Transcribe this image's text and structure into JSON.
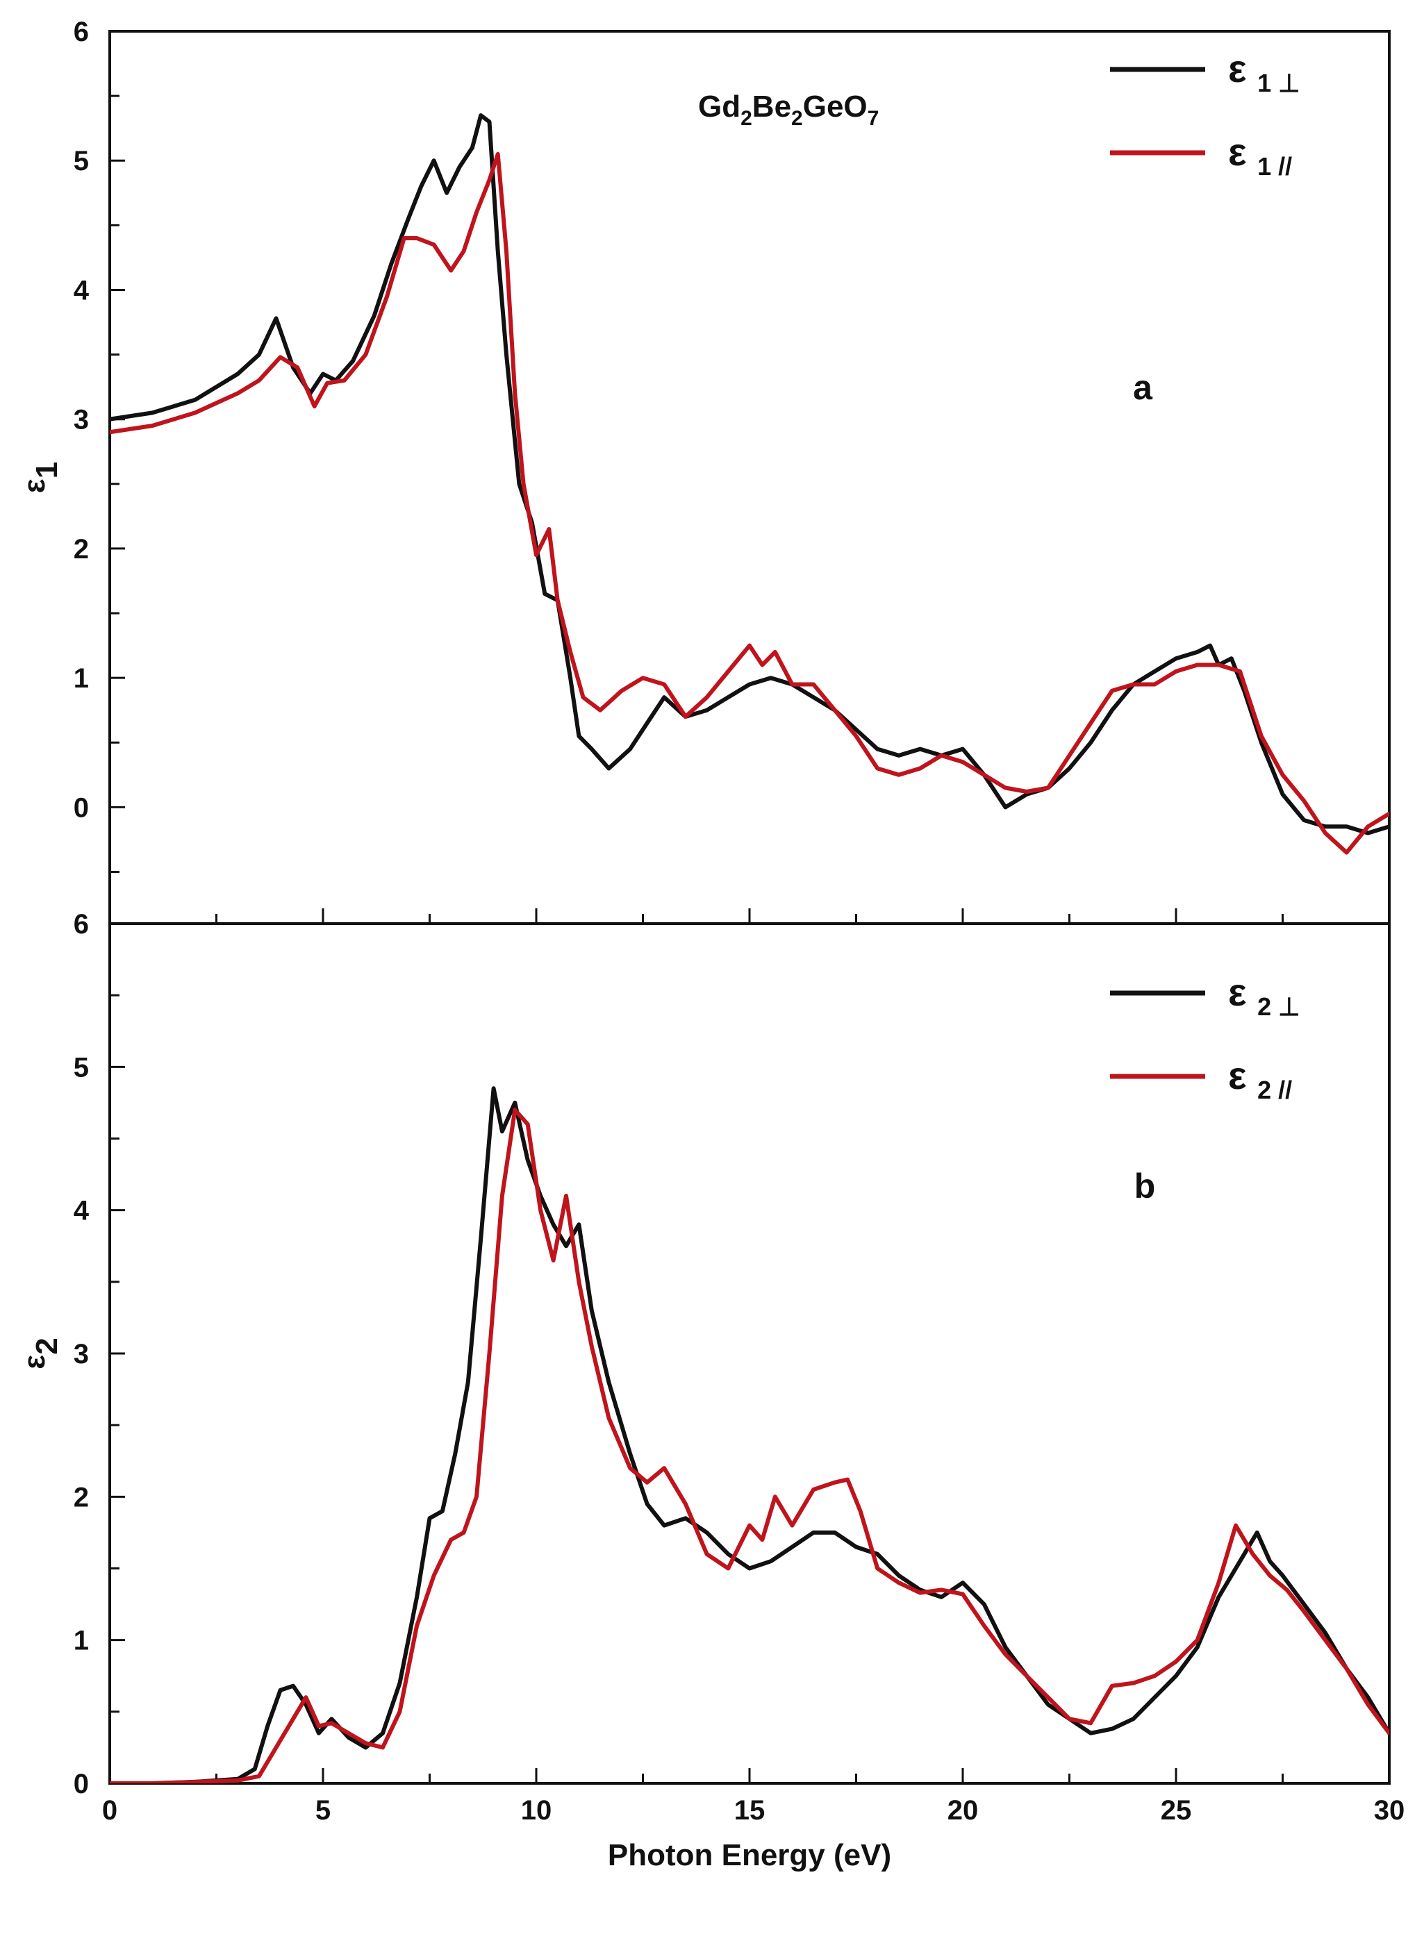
{
  "chart_data": [
    {
      "type": "line",
      "panel_label": "a",
      "annotation": {
        "main": "Gd",
        "parts": [
          [
            "Gd",
            "2"
          ],
          [
            "Be",
            "2"
          ],
          [
            "GeO",
            "7"
          ]
        ]
      },
      "ylabel": {
        "symbol": "ε",
        "sub": "1"
      },
      "xlabel": "",
      "xlim": [
        0,
        30
      ],
      "ylim": [
        -0.9,
        6
      ],
      "yticks": [
        "0",
        "1",
        "2",
        "3",
        "4",
        "5",
        "6"
      ],
      "xticks": [],
      "legend_position": "top-right",
      "series": [
        {
          "name": "ε 1 ⊥",
          "legend_symbol": "ε",
          "legend_sub": "1",
          "legend_mark": "⊥",
          "color": "#111111",
          "x": [
            0,
            1,
            2,
            3,
            3.5,
            3.9,
            4.3,
            4.7,
            5.0,
            5.3,
            5.7,
            6.2,
            6.6,
            7.0,
            7.3,
            7.6,
            7.9,
            8.2,
            8.5,
            8.7,
            8.9,
            9.1,
            9.3,
            9.6,
            9.9,
            10.2,
            10.5,
            10.8,
            11.0,
            11.3,
            11.7,
            12.2,
            12.6,
            13.0,
            13.5,
            14.0,
            14.5,
            15.0,
            15.5,
            16.0,
            16.5,
            17.0,
            17.5,
            18.0,
            18.5,
            19.0,
            19.5,
            20.0,
            20.5,
            21.0,
            21.5,
            22.0,
            22.5,
            23.0,
            23.5,
            24.0,
            24.5,
            25.0,
            25.5,
            25.8,
            26.0,
            26.3,
            26.6,
            27.0,
            27.5,
            28.0,
            28.5,
            29.0,
            29.5,
            30.0
          ],
          "values": [
            3.0,
            3.05,
            3.15,
            3.35,
            3.5,
            3.78,
            3.4,
            3.2,
            3.35,
            3.3,
            3.45,
            3.8,
            4.2,
            4.55,
            4.8,
            5.0,
            4.75,
            4.95,
            5.1,
            5.35,
            5.3,
            4.3,
            3.5,
            2.5,
            2.2,
            1.65,
            1.6,
            1.0,
            0.55,
            0.45,
            0.3,
            0.45,
            0.65,
            0.85,
            0.7,
            0.75,
            0.85,
            0.95,
            1.0,
            0.95,
            0.85,
            0.75,
            0.6,
            0.45,
            0.4,
            0.45,
            0.4,
            0.45,
            0.25,
            0.0,
            0.1,
            0.15,
            0.3,
            0.5,
            0.75,
            0.95,
            1.05,
            1.15,
            1.2,
            1.25,
            1.1,
            1.15,
            0.9,
            0.5,
            0.1,
            -0.1,
            -0.15,
            -0.15,
            -0.2,
            -0.15
          ]
        },
        {
          "name": "ε 1 //",
          "legend_symbol": "ε",
          "legend_sub": "1",
          "legend_mark": "//",
          "color": "#c0141c",
          "x": [
            0,
            1,
            2,
            3,
            3.5,
            4.0,
            4.4,
            4.8,
            5.1,
            5.5,
            6.0,
            6.5,
            6.9,
            7.2,
            7.6,
            8.0,
            8.3,
            8.6,
            8.9,
            9.1,
            9.3,
            9.5,
            9.7,
            10.0,
            10.3,
            10.5,
            10.8,
            11.1,
            11.5,
            12.0,
            12.5,
            13.0,
            13.5,
            14.0,
            14.5,
            15.0,
            15.3,
            15.6,
            16.0,
            16.5,
            17.0,
            17.5,
            18.0,
            18.5,
            19.0,
            19.5,
            20.0,
            20.5,
            21.0,
            21.5,
            22.0,
            22.5,
            23.0,
            23.5,
            24.0,
            24.5,
            25.0,
            25.5,
            26.0,
            26.5,
            27.0,
            27.5,
            28.0,
            28.5,
            29.0,
            29.5,
            30.0
          ],
          "values": [
            2.9,
            2.95,
            3.05,
            3.2,
            3.3,
            3.48,
            3.4,
            3.1,
            3.28,
            3.3,
            3.5,
            3.95,
            4.4,
            4.4,
            4.35,
            4.15,
            4.3,
            4.6,
            4.85,
            5.05,
            4.3,
            3.2,
            2.5,
            1.95,
            2.15,
            1.6,
            1.2,
            0.85,
            0.75,
            0.9,
            1.0,
            0.95,
            0.7,
            0.85,
            1.05,
            1.25,
            1.1,
            1.2,
            0.95,
            0.95,
            0.75,
            0.55,
            0.3,
            0.25,
            0.3,
            0.4,
            0.35,
            0.25,
            0.15,
            0.12,
            0.15,
            0.4,
            0.65,
            0.9,
            0.95,
            0.95,
            1.05,
            1.1,
            1.1,
            1.05,
            0.55,
            0.25,
            0.05,
            -0.2,
            -0.35,
            -0.15,
            -0.05
          ]
        }
      ]
    },
    {
      "type": "line",
      "panel_label": "b",
      "ylabel": {
        "symbol": "ε",
        "sub": "2"
      },
      "xlabel": "Photon Energy (eV)",
      "xlim": [
        0,
        30
      ],
      "ylim": [
        0,
        6
      ],
      "yticks": [
        "0",
        "1",
        "2",
        "3",
        "4",
        "5",
        "6"
      ],
      "xticks": [
        "0",
        "5",
        "10",
        "15",
        "20",
        "25",
        "30"
      ],
      "legend_position": "top-right",
      "series": [
        {
          "name": "ε 2 ⊥",
          "legend_symbol": "ε",
          "legend_sub": "2",
          "legend_mark": "⊥",
          "color": "#111111",
          "x": [
            0,
            1,
            2,
            3,
            3.4,
            3.7,
            4.0,
            4.3,
            4.6,
            4.9,
            5.2,
            5.6,
            6.0,
            6.4,
            6.8,
            7.2,
            7.5,
            7.8,
            8.1,
            8.4,
            8.7,
            9.0,
            9.2,
            9.5,
            9.8,
            10.1,
            10.4,
            10.7,
            11.0,
            11.3,
            11.7,
            12.2,
            12.6,
            13.0,
            13.5,
            14.0,
            14.5,
            15.0,
            15.5,
            16.0,
            16.5,
            17.0,
            17.5,
            18.0,
            18.5,
            19.0,
            19.5,
            20.0,
            20.5,
            21.0,
            21.5,
            22.0,
            22.5,
            23.0,
            23.5,
            24.0,
            24.5,
            25.0,
            25.5,
            26.0,
            26.5,
            26.9,
            27.2,
            27.5,
            28.0,
            28.5,
            29.0,
            29.5,
            30.0
          ],
          "values": [
            0.0,
            0.0,
            0.01,
            0.03,
            0.1,
            0.4,
            0.65,
            0.68,
            0.55,
            0.35,
            0.45,
            0.32,
            0.25,
            0.35,
            0.7,
            1.3,
            1.85,
            1.9,
            2.3,
            2.8,
            3.8,
            4.85,
            4.55,
            4.75,
            4.35,
            4.1,
            3.9,
            3.75,
            3.9,
            3.3,
            2.8,
            2.3,
            1.95,
            1.8,
            1.85,
            1.75,
            1.6,
            1.5,
            1.55,
            1.65,
            1.75,
            1.75,
            1.65,
            1.6,
            1.45,
            1.35,
            1.3,
            1.4,
            1.25,
            0.95,
            0.75,
            0.55,
            0.45,
            0.35,
            0.38,
            0.45,
            0.6,
            0.75,
            0.95,
            1.3,
            1.55,
            1.75,
            1.55,
            1.45,
            1.25,
            1.05,
            0.8,
            0.6,
            0.35
          ]
        },
        {
          "name": "ε 2 //",
          "legend_symbol": "ε",
          "legend_sub": "2",
          "legend_mark": "//",
          "color": "#c0141c",
          "x": [
            0,
            1,
            2,
            3,
            3.5,
            3.9,
            4.3,
            4.6,
            4.9,
            5.2,
            5.6,
            6.0,
            6.4,
            6.8,
            7.2,
            7.6,
            8.0,
            8.3,
            8.6,
            8.9,
            9.2,
            9.5,
            9.8,
            10.1,
            10.4,
            10.7,
            11.0,
            11.3,
            11.7,
            12.2,
            12.6,
            13.0,
            13.5,
            14.0,
            14.5,
            15.0,
            15.3,
            15.6,
            16.0,
            16.5,
            17.0,
            17.3,
            17.6,
            18.0,
            18.5,
            19.0,
            19.5,
            20.0,
            20.5,
            21.0,
            21.5,
            22.0,
            22.5,
            23.0,
            23.5,
            24.0,
            24.5,
            25.0,
            25.5,
            26.0,
            26.4,
            26.8,
            27.2,
            27.6,
            28.0,
            28.5,
            29.0,
            29.5,
            30.0
          ],
          "values": [
            0.0,
            0.0,
            0.01,
            0.02,
            0.05,
            0.25,
            0.45,
            0.6,
            0.4,
            0.42,
            0.35,
            0.28,
            0.25,
            0.5,
            1.1,
            1.45,
            1.7,
            1.75,
            2.0,
            3.0,
            4.1,
            4.7,
            4.6,
            4.0,
            3.65,
            4.1,
            3.5,
            3.05,
            2.55,
            2.2,
            2.1,
            2.2,
            1.95,
            1.6,
            1.5,
            1.8,
            1.7,
            2.0,
            1.8,
            2.05,
            2.1,
            2.12,
            1.9,
            1.5,
            1.4,
            1.33,
            1.35,
            1.32,
            1.1,
            0.9,
            0.75,
            0.6,
            0.45,
            0.42,
            0.68,
            0.7,
            0.75,
            0.85,
            1.0,
            1.4,
            1.8,
            1.6,
            1.45,
            1.35,
            1.2,
            1.0,
            0.8,
            0.55,
            0.35
          ]
        }
      ]
    }
  ]
}
